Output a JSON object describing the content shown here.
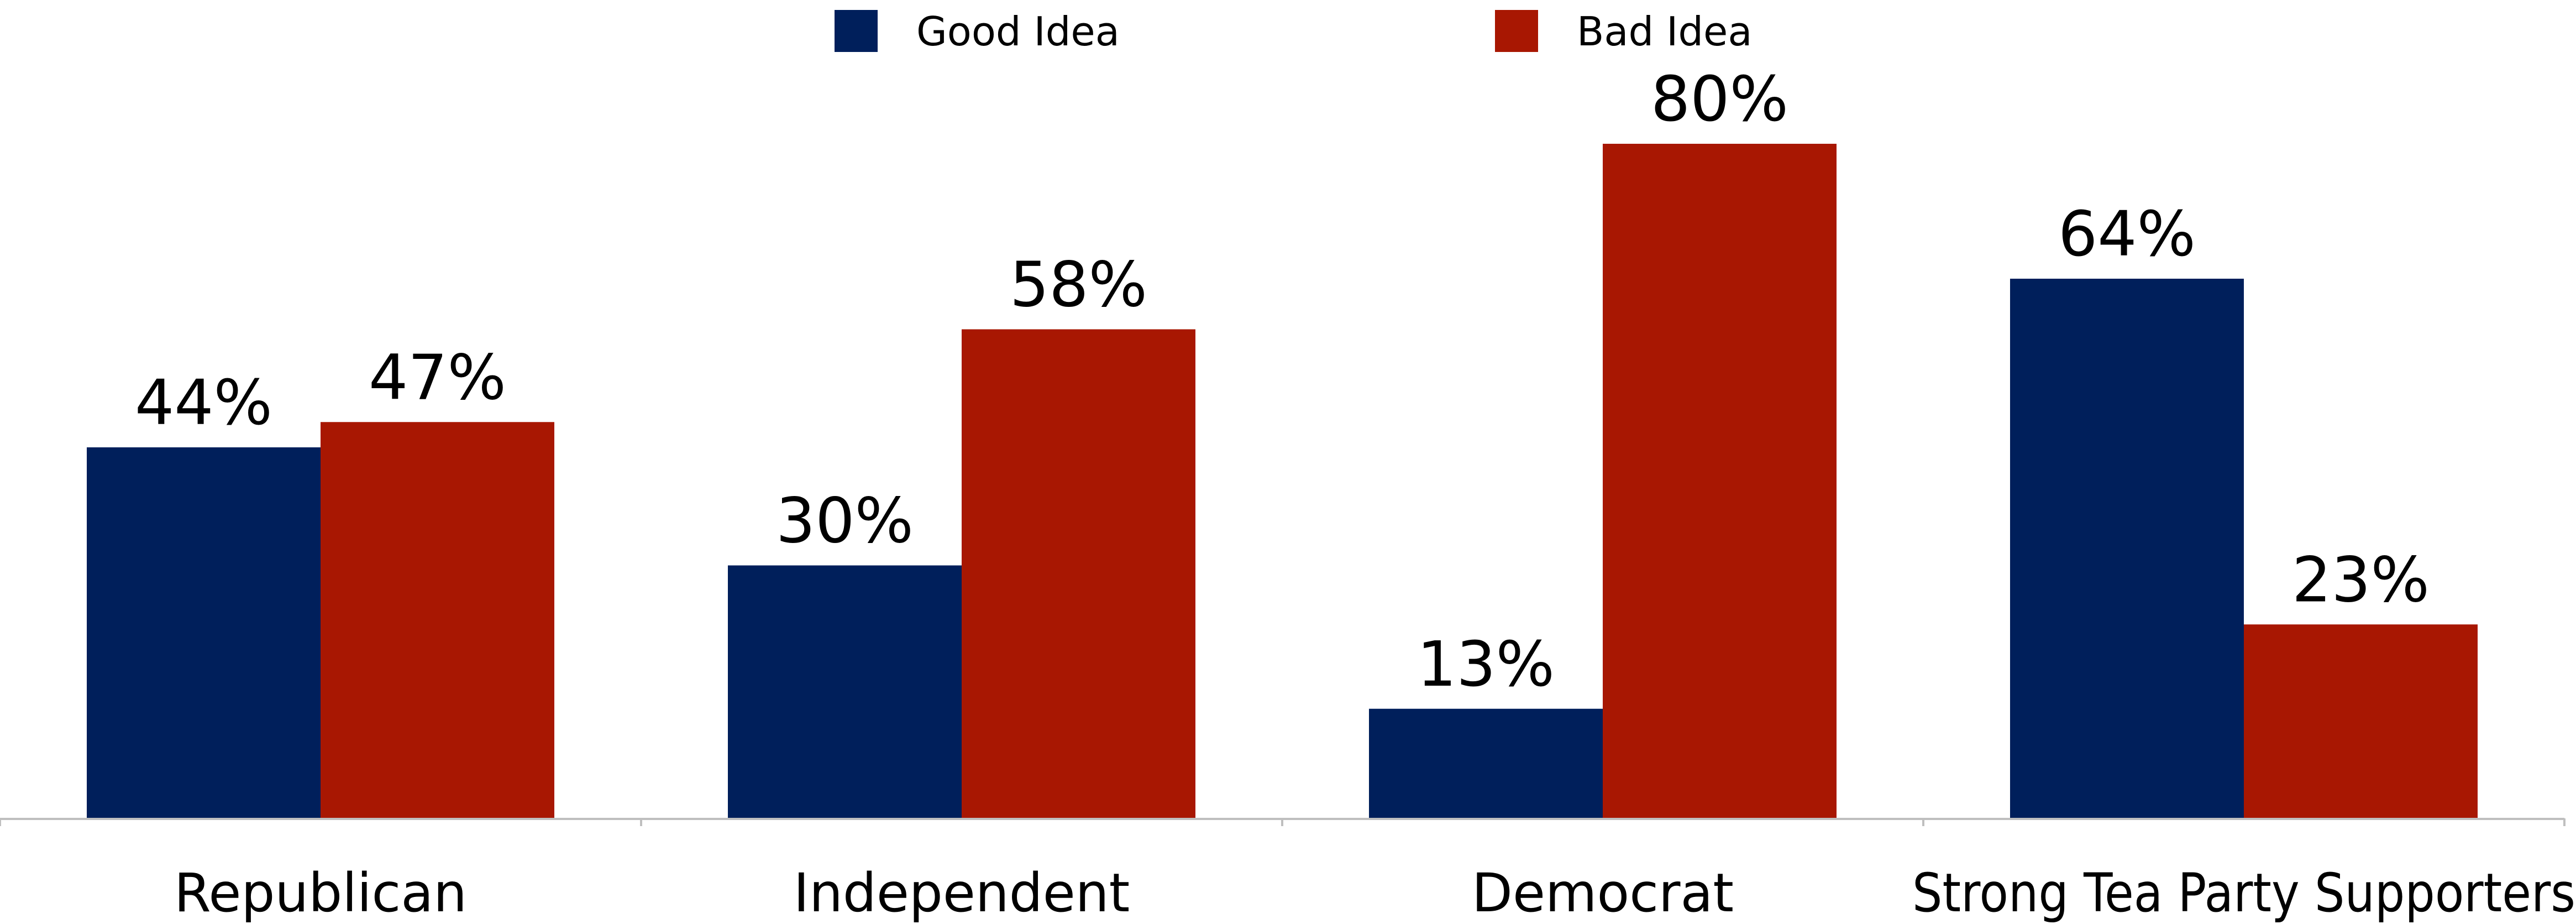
{
  "chart_data": {
    "type": "bar",
    "categories": [
      "Republican",
      "Independent",
      "Democrat",
      "Strong Tea Party Supporters"
    ],
    "series": [
      {
        "name": "Good Idea",
        "values": [
          44,
          30,
          13,
          64
        ],
        "color": "#001F5B"
      },
      {
        "name": "Bad Idea",
        "values": [
          47,
          58,
          80,
          23
        ],
        "color": "#A81702"
      }
    ],
    "value_labels": {
      "Good Idea": [
        "44%",
        "30%",
        "13%",
        "64%"
      ],
      "Bad Idea": [
        "47%",
        "58%",
        "80%",
        "23%"
      ]
    },
    "ylim": [
      0,
      80
    ],
    "legend_position": "top",
    "grid": false,
    "axis_color": "#BFBFBF"
  }
}
